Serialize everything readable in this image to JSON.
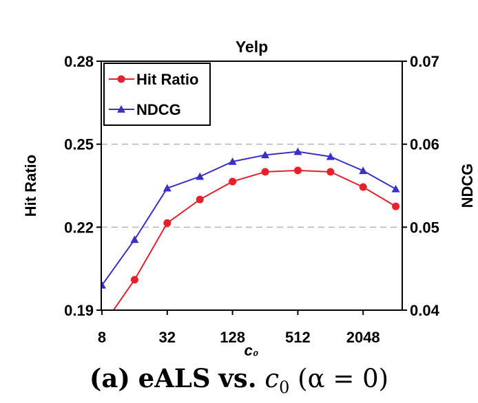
{
  "chart_data": {
    "type": "line",
    "title": "Yelp",
    "xlabel": "c₀",
    "ylabel_left": "Hit Ratio",
    "ylabel_right": "NDCG",
    "x_scale": "log2",
    "x": [
      8,
      16,
      32,
      64,
      128,
      256,
      512,
      1024,
      2048,
      4096
    ],
    "x_tick_labels": [
      "8",
      "32",
      "128",
      "512",
      "2048"
    ],
    "x_tick_values": [
      8,
      32,
      128,
      512,
      2048
    ],
    "ylim_left": [
      0.19,
      0.28
    ],
    "y_ticks_left": [
      "0.28",
      "0.25",
      "0.22",
      "0.19"
    ],
    "y_tick_values_left": [
      0.28,
      0.25,
      0.22,
      0.19
    ],
    "ylim_right": [
      0.04,
      0.07
    ],
    "y_ticks_right": [
      "0.07",
      "0.06",
      "0.05",
      "0.04"
    ],
    "y_tick_values_right": [
      0.07,
      0.06,
      0.05,
      0.04
    ],
    "grid": "horizontal-dashed",
    "legend_position": "top-left",
    "series": [
      {
        "name": "Hit Ratio",
        "axis": "left",
        "color": "#e8202a",
        "marker": "circle",
        "values": [
          0.184,
          0.201,
          0.2215,
          0.23,
          0.2365,
          0.24,
          0.2405,
          0.24,
          0.2345,
          0.2275
        ]
      },
      {
        "name": "NDCG",
        "axis": "right",
        "color": "#3a2fc9",
        "marker": "triangle",
        "values": [
          0.043,
          0.0485,
          0.0547,
          0.0561,
          0.0579,
          0.0587,
          0.0591,
          0.0585,
          0.0568,
          0.0546
        ]
      }
    ]
  },
  "caption": {
    "part_label": "(a)",
    "method": "eALS",
    "vs": "vs.",
    "variable": "c",
    "subscript": "0",
    "condition": "(α = 0)"
  }
}
